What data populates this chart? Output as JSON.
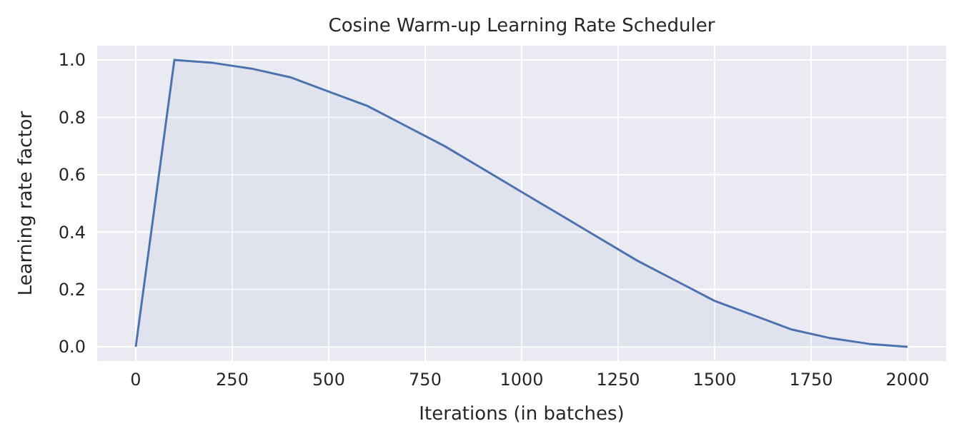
{
  "chart_data": {
    "type": "area",
    "title": "Cosine Warm-up Learning Rate Scheduler",
    "xlabel": "Iterations (in batches)",
    "ylabel": "Learning rate factor",
    "x": [
      0,
      100,
      200,
      300,
      400,
      500,
      600,
      700,
      800,
      900,
      1000,
      1100,
      1200,
      1300,
      1400,
      1500,
      1600,
      1700,
      1800,
      1900,
      2000
    ],
    "series": [
      {
        "color": "#4c72b0",
        "values": [
          0,
          1.0,
          0.99,
          0.97,
          0.94,
          0.89,
          0.84,
          0.77,
          0.7,
          0.62,
          0.54,
          0.46,
          0.38,
          0.3,
          0.23,
          0.16,
          0.11,
          0.06,
          0.03,
          0.01,
          0
        ]
      }
    ],
    "xlim": [
      -100,
      2100
    ],
    "ylim": [
      -0.05,
      1.05
    ],
    "xticks": [
      0,
      250,
      500,
      750,
      1000,
      1250,
      1500,
      1750,
      2000
    ],
    "yticks": [
      {
        "value": 0,
        "label": "0.0"
      },
      {
        "value": 0.2,
        "label": "0.2"
      },
      {
        "value": 0.4,
        "label": "0.4"
      },
      {
        "value": 0.6,
        "label": "0.6"
      },
      {
        "value": 0.8,
        "label": "0.8"
      },
      {
        "value": 1,
        "label": "1.0"
      }
    ],
    "grid": true
  }
}
